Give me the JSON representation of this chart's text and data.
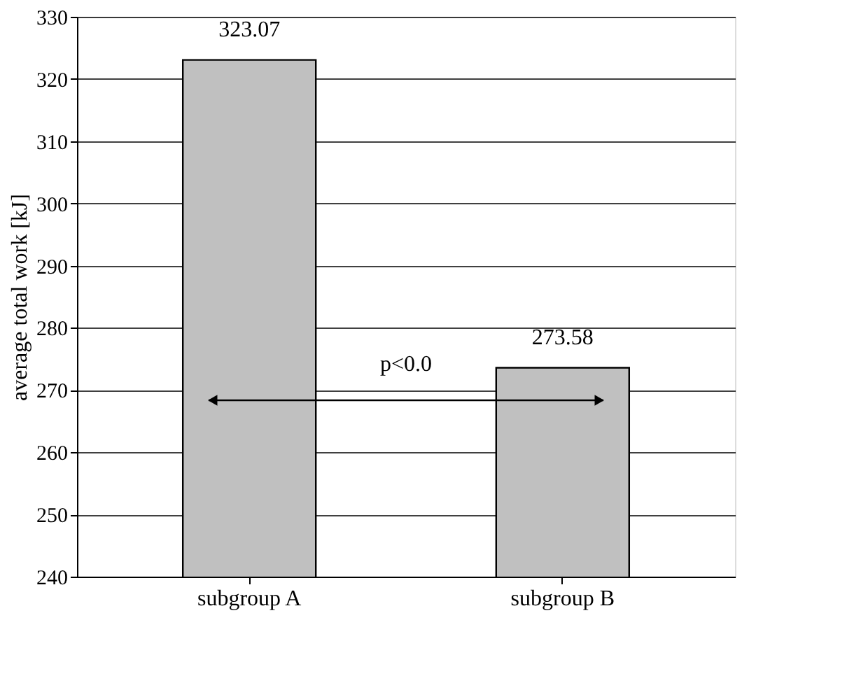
{
  "chart_data": {
    "type": "bar",
    "ylabel": "average total work [kJ]",
    "categories": [
      "subgroup A",
      "subgroup B"
    ],
    "values": [
      323.07,
      273.58
    ],
    "color": "#c0c0c0",
    "ylim": [
      240,
      330
    ],
    "yticks": [
      240,
      250,
      260,
      270,
      280,
      290,
      300,
      310,
      320,
      330
    ],
    "grid": "y",
    "data_labels": true,
    "annotations": [
      "p<0.0"
    ]
  }
}
